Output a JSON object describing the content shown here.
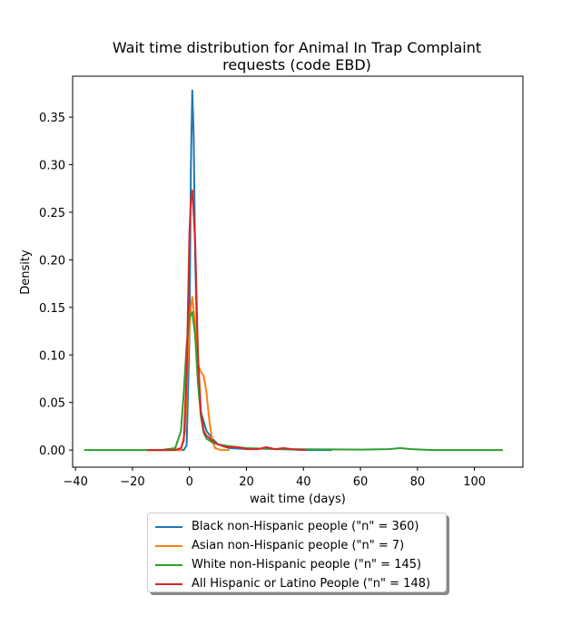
{
  "chart_data": {
    "type": "line",
    "title_line1": "Wait time distribution  for Animal In Trap Complaint",
    "title_line2": "requests (code EBD)",
    "xlabel": "wait time (days)",
    "ylabel": "Density",
    "xlim": [
      -41,
      117
    ],
    "ylim": [
      -0.018,
      0.393
    ],
    "xticks": [
      -40,
      -20,
      0,
      20,
      40,
      60,
      80,
      100
    ],
    "yticks": [
      0.0,
      0.05,
      0.1,
      0.15,
      0.2,
      0.25,
      0.3,
      0.35
    ],
    "xtick_labels": [
      "−40",
      "−20",
      "0",
      "20",
      "40",
      "60",
      "80",
      "100"
    ],
    "ytick_labels": [
      "0.00",
      "0.05",
      "0.10",
      "0.15",
      "0.20",
      "0.25",
      "0.30",
      "0.35"
    ],
    "grid": false,
    "legend_position": "below",
    "series": [
      {
        "name": "Black non-Hispanic people (\"n\" = 360)",
        "color": "#1f77b4",
        "points": [
          [
            -15,
            0
          ],
          [
            -2,
            0
          ],
          [
            -1,
            0.005
          ],
          [
            0,
            0.12
          ],
          [
            0.5,
            0.3
          ],
          [
            1,
            0.378
          ],
          [
            1.5,
            0.33
          ],
          [
            2,
            0.2
          ],
          [
            3,
            0.08
          ],
          [
            4,
            0.04
          ],
          [
            6,
            0.02
          ],
          [
            8,
            0.012
          ],
          [
            10,
            0.006
          ],
          [
            14,
            0.002
          ],
          [
            18,
            0.0015
          ],
          [
            22,
            0.001
          ],
          [
            27,
            0.002
          ],
          [
            30,
            0.001
          ],
          [
            33,
            0.001
          ],
          [
            40,
            0
          ],
          [
            50,
            0
          ]
        ]
      },
      {
        "name": "Asian non-Hispanic people (\"n\" = 7)",
        "color": "#ff7f0e",
        "points": [
          [
            -10,
            0
          ],
          [
            -3,
            0
          ],
          [
            -1.5,
            0.02
          ],
          [
            -0.5,
            0.1
          ],
          [
            0.5,
            0.15
          ],
          [
            1,
            0.161
          ],
          [
            2,
            0.13
          ],
          [
            3,
            0.09
          ],
          [
            4,
            0.082
          ],
          [
            5,
            0.078
          ],
          [
            6,
            0.06
          ],
          [
            7,
            0.03
          ],
          [
            8,
            0.01
          ],
          [
            9,
            0.002
          ],
          [
            11,
            0
          ],
          [
            14,
            0
          ]
        ]
      },
      {
        "name": "White non-Hispanic people (\"n\" = 145)",
        "color": "#2ca02c",
        "points": [
          [
            -37,
            0
          ],
          [
            -10,
            0
          ],
          [
            -5,
            0.002
          ],
          [
            -3,
            0.02
          ],
          [
            -2,
            0.06
          ],
          [
            -1,
            0.11
          ],
          [
            0,
            0.14
          ],
          [
            1,
            0.145
          ],
          [
            2,
            0.12
          ],
          [
            3,
            0.07
          ],
          [
            4,
            0.035
          ],
          [
            5,
            0.018
          ],
          [
            6,
            0.012
          ],
          [
            8,
            0.008
          ],
          [
            10,
            0.006
          ],
          [
            14,
            0.004
          ],
          [
            20,
            0.002
          ],
          [
            30,
            0.001
          ],
          [
            60,
            0.0005
          ],
          [
            70,
            0.001
          ],
          [
            74,
            0.002
          ],
          [
            78,
            0.001
          ],
          [
            85,
            0
          ],
          [
            110,
            0
          ]
        ]
      },
      {
        "name": "All Hispanic or Latino People (\"n\" = 148)",
        "color": "#d62728",
        "points": [
          [
            -15,
            0
          ],
          [
            -5,
            0
          ],
          [
            -3,
            0.002
          ],
          [
            -2,
            0.01
          ],
          [
            -1,
            0.08
          ],
          [
            0,
            0.23
          ],
          [
            0.5,
            0.262
          ],
          [
            1,
            0.273
          ],
          [
            2,
            0.22
          ],
          [
            3,
            0.1
          ],
          [
            4,
            0.04
          ],
          [
            5,
            0.02
          ],
          [
            6,
            0.015
          ],
          [
            8,
            0.01
          ],
          [
            10,
            0.006
          ],
          [
            13,
            0.003
          ],
          [
            17,
            0.003
          ],
          [
            20,
            0.001
          ],
          [
            24,
            0.001
          ],
          [
            27,
            0.003
          ],
          [
            30,
            0.001
          ],
          [
            33,
            0.002
          ],
          [
            36,
            0.001
          ],
          [
            41,
            0
          ]
        ]
      }
    ]
  }
}
